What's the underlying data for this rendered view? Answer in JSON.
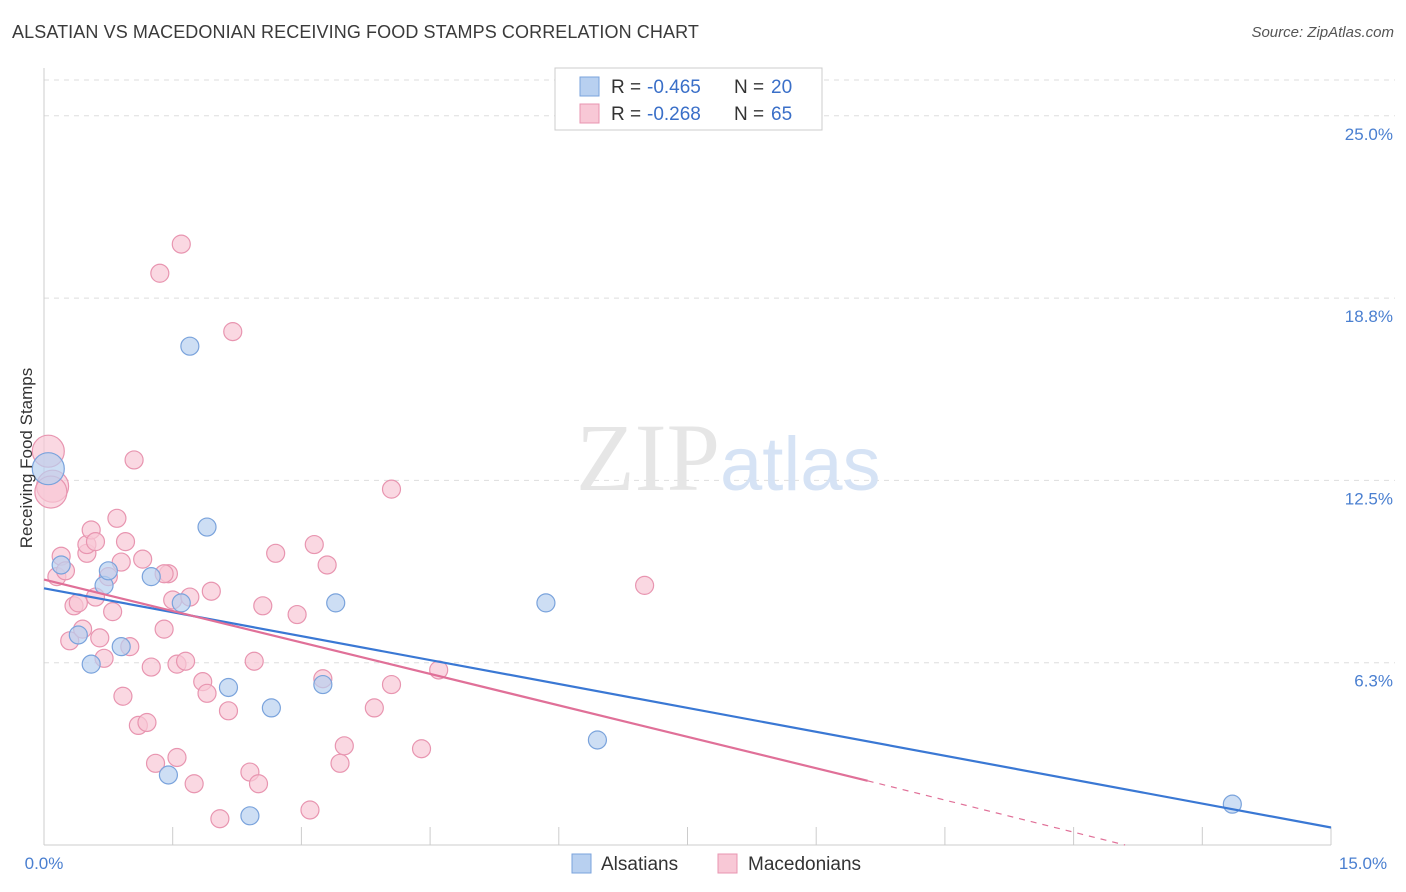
{
  "title": "ALSATIAN VS MACEDONIAN RECEIVING FOOD STAMPS CORRELATION CHART",
  "source": "Source: ZipAtlas.com",
  "watermark": {
    "zip": "ZIP",
    "atlas": "atlas"
  },
  "legend": {
    "rows": [
      {
        "r_label": "R =",
        "r_value": "-0.465",
        "n_label": "N =",
        "n_value": "20"
      },
      {
        "r_label": "R =",
        "r_value": "-0.268",
        "n_label": "N =",
        "n_value": "65"
      }
    ]
  },
  "bottom_legend": [
    "Alsatians",
    "Macedonians"
  ],
  "colors": {
    "alsatian_fill": "#b8d0f0",
    "alsatian_stroke": "#7aa3dc",
    "alsatian_line": "#3a78d4",
    "macedonian_fill": "#f8c8d6",
    "macedonian_stroke": "#e895b0",
    "macedonian_line": "#e07098",
    "tick": "#4a7fd0",
    "grid": "#dddddd"
  },
  "chart_data": {
    "type": "scatter",
    "title": "ALSATIAN VS MACEDONIAN RECEIVING FOOD STAMPS CORRELATION CHART",
    "xlabel": "",
    "ylabel": "Receiving Food Stamps",
    "xlim": [
      0,
      15
    ],
    "ylim": [
      0,
      26.5
    ],
    "x_tick_labels": [
      "0.0%",
      "15.0%"
    ],
    "y_ticks": [
      6.25,
      12.5,
      18.75,
      25.0
    ],
    "y_tick_labels": [
      "6.3%",
      "12.5%",
      "18.8%",
      "25.0%"
    ],
    "grid": true,
    "legend_position": "top-center",
    "series": [
      {
        "name": "Alsatians",
        "points": [
          [
            0.05,
            12.9
          ],
          [
            0.2,
            9.6
          ],
          [
            0.55,
            6.2
          ],
          [
            0.4,
            7.2
          ],
          [
            0.7,
            8.9
          ],
          [
            0.75,
            9.4
          ],
          [
            0.9,
            6.8
          ],
          [
            1.25,
            9.2
          ],
          [
            1.6,
            8.3
          ],
          [
            1.7,
            17.1
          ],
          [
            1.9,
            10.9
          ],
          [
            1.45,
            2.4
          ],
          [
            2.15,
            5.4
          ],
          [
            2.4,
            1.0
          ],
          [
            2.65,
            4.7
          ],
          [
            3.25,
            5.5
          ],
          [
            3.4,
            8.3
          ],
          [
            5.85,
            8.3
          ],
          [
            6.45,
            3.6
          ],
          [
            13.85,
            1.4
          ]
        ],
        "trend": {
          "x": [
            0,
            15
          ],
          "y": [
            8.8,
            0.6
          ]
        }
      },
      {
        "name": "Macedonians",
        "points": [
          [
            0.05,
            13.5
          ],
          [
            0.1,
            12.3
          ],
          [
            0.15,
            9.2
          ],
          [
            0.2,
            9.9
          ],
          [
            0.25,
            9.4
          ],
          [
            0.3,
            7.0
          ],
          [
            0.35,
            8.2
          ],
          [
            0.4,
            8.3
          ],
          [
            0.45,
            7.4
          ],
          [
            0.5,
            10.0
          ],
          [
            0.5,
            10.3
          ],
          [
            0.55,
            10.8
          ],
          [
            0.6,
            8.5
          ],
          [
            0.65,
            7.1
          ],
          [
            0.7,
            6.4
          ],
          [
            0.75,
            9.2
          ],
          [
            0.8,
            8.0
          ],
          [
            0.85,
            11.2
          ],
          [
            0.9,
            9.7
          ],
          [
            0.92,
            5.1
          ],
          [
            0.95,
            10.4
          ],
          [
            1.0,
            6.8
          ],
          [
            1.05,
            13.2
          ],
          [
            1.1,
            4.1
          ],
          [
            1.15,
            9.8
          ],
          [
            1.2,
            4.2
          ],
          [
            1.25,
            6.1
          ],
          [
            1.3,
            2.8
          ],
          [
            1.35,
            19.6
          ],
          [
            1.4,
            7.4
          ],
          [
            1.45,
            9.3
          ],
          [
            1.5,
            8.4
          ],
          [
            1.55,
            6.2
          ],
          [
            1.55,
            3.0
          ],
          [
            1.6,
            20.6
          ],
          [
            1.65,
            6.3
          ],
          [
            1.7,
            8.5
          ],
          [
            1.75,
            2.1
          ],
          [
            1.85,
            5.6
          ],
          [
            1.9,
            5.2
          ],
          [
            1.95,
            8.7
          ],
          [
            2.05,
            0.9
          ],
          [
            2.15,
            4.6
          ],
          [
            2.2,
            17.6
          ],
          [
            2.4,
            2.5
          ],
          [
            2.45,
            6.3
          ],
          [
            2.5,
            2.1
          ],
          [
            2.55,
            8.2
          ],
          [
            2.7,
            10.0
          ],
          [
            2.95,
            7.9
          ],
          [
            3.1,
            1.2
          ],
          [
            3.15,
            10.3
          ],
          [
            3.25,
            5.7
          ],
          [
            3.3,
            9.6
          ],
          [
            3.45,
            2.8
          ],
          [
            3.5,
            3.4
          ],
          [
            3.85,
            4.7
          ],
          [
            4.05,
            12.2
          ],
          [
            4.05,
            5.5
          ],
          [
            4.4,
            3.3
          ],
          [
            4.6,
            6.0
          ],
          [
            7.0,
            8.9
          ],
          [
            0.08,
            12.1
          ],
          [
            0.6,
            10.4
          ],
          [
            1.4,
            9.3
          ]
        ],
        "trend": {
          "x": [
            0,
            9.6
          ],
          "y": [
            9.1,
            2.2
          ]
        },
        "trend_dashed": {
          "x": [
            9.6,
            12.6
          ],
          "y": [
            2.2,
            0.0
          ]
        }
      }
    ]
  }
}
